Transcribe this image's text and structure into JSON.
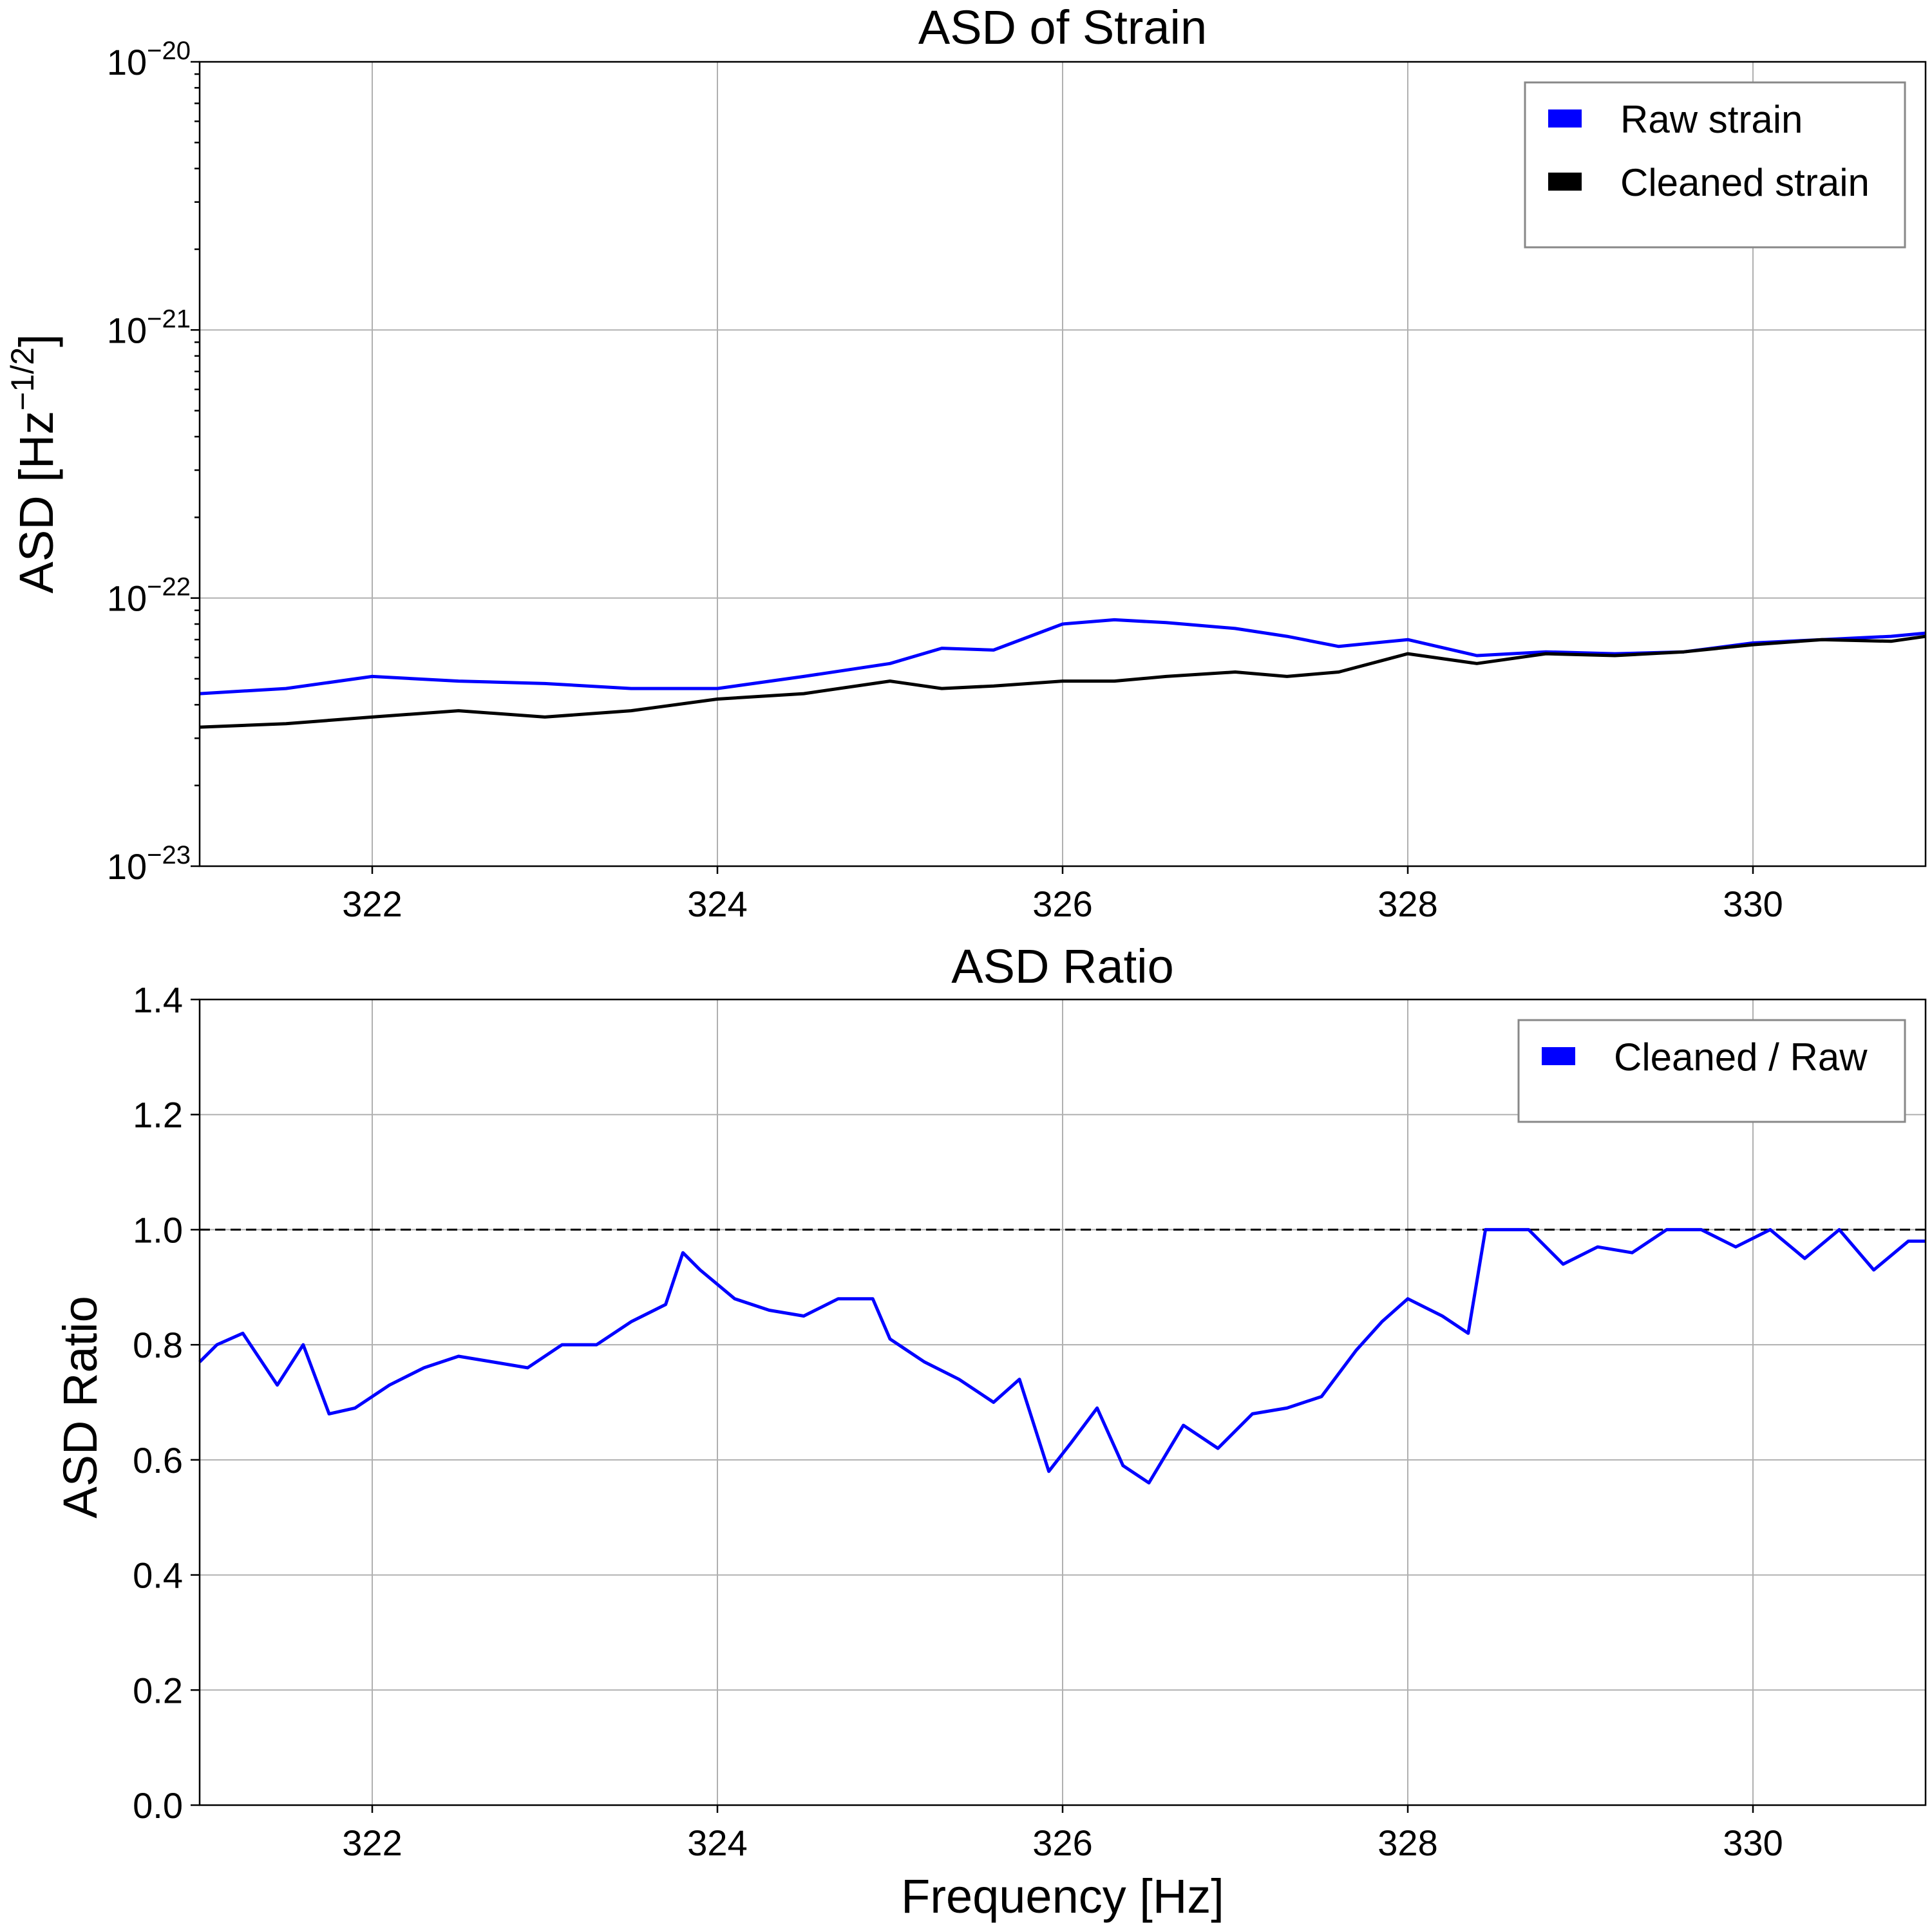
{
  "chart_data": [
    {
      "type": "line",
      "title": "ASD of Strain",
      "ylabel": "ASD [Hz",
      "ylabel_sup": "−1/2",
      "ylabel_suffix": "]",
      "xlabel": "",
      "x_scale": "linear",
      "y_scale": "log",
      "xlim": [
        321,
        331
      ],
      "ylim": [
        1e-23,
        1e-20
      ],
      "x_ticks": [
        "322",
        "324",
        "326",
        "328",
        "330"
      ],
      "y_tick_labels": [
        {
          "value": 1e-20,
          "base": "10",
          "exp": "−20"
        },
        {
          "value": 1e-21,
          "base": "10",
          "exp": "−21"
        },
        {
          "value": 1e-22,
          "base": "10",
          "exp": "−22"
        },
        {
          "value": 1e-23,
          "base": "10",
          "exp": "−23"
        }
      ],
      "grid": true,
      "legend_position": "top-right",
      "legend": [
        {
          "label": "Raw strain",
          "color": "#0000ff"
        },
        {
          "label": "Cleaned strain",
          "color": "#000000"
        }
      ],
      "series": [
        {
          "name": "Raw strain",
          "color": "#0000ff",
          "x": [
            321.0,
            321.5,
            322.0,
            322.5,
            323.0,
            323.5,
            324.0,
            324.5,
            325.0,
            325.3,
            325.6,
            326.0,
            326.3,
            326.6,
            327.0,
            327.3,
            327.6,
            328.0,
            328.4,
            328.8,
            329.2,
            329.6,
            330.0,
            330.4,
            330.8,
            331.0
          ],
          "values": [
            4.4e-23,
            4.6e-23,
            5.1e-23,
            4.9e-23,
            4.8e-23,
            4.6e-23,
            4.6e-23,
            5.1e-23,
            5.7e-23,
            6.5e-23,
            6.4e-23,
            8e-23,
            8.3e-23,
            8.1e-23,
            7.7e-23,
            7.2e-23,
            6.6e-23,
            7e-23,
            6.1e-23,
            6.3e-23,
            6.2e-23,
            6.3e-23,
            6.8e-23,
            7e-23,
            7.2e-23,
            7.4e-23
          ]
        },
        {
          "name": "Cleaned strain",
          "color": "#000000",
          "x": [
            321.0,
            321.5,
            322.0,
            322.5,
            323.0,
            323.5,
            324.0,
            324.5,
            325.0,
            325.3,
            325.6,
            326.0,
            326.3,
            326.6,
            327.0,
            327.3,
            327.6,
            328.0,
            328.4,
            328.8,
            329.2,
            329.6,
            330.0,
            330.4,
            330.8,
            331.0
          ],
          "values": [
            3.3e-23,
            3.4e-23,
            3.6e-23,
            3.8e-23,
            3.6e-23,
            3.8e-23,
            4.2e-23,
            4.4e-23,
            4.9e-23,
            4.6e-23,
            4.7e-23,
            4.9e-23,
            4.9e-23,
            5.1e-23,
            5.3e-23,
            5.1e-23,
            5.3e-23,
            6.2e-23,
            5.7e-23,
            6.2e-23,
            6.1e-23,
            6.3e-23,
            6.7e-23,
            7e-23,
            6.9e-23,
            7.2e-23
          ]
        }
      ]
    },
    {
      "type": "line",
      "title": "ASD Ratio",
      "ylabel": "ASD Ratio",
      "xlabel": "Frequency [Hz]",
      "x_scale": "linear",
      "y_scale": "linear",
      "xlim": [
        321,
        331
      ],
      "ylim": [
        0.0,
        1.4
      ],
      "x_ticks": [
        "322",
        "324",
        "326",
        "328",
        "330"
      ],
      "y_ticks": [
        "0.0",
        "0.2",
        "0.4",
        "0.6",
        "0.8",
        "1.0",
        "1.2",
        "1.4"
      ],
      "grid": true,
      "reference_line": {
        "y": 1.0,
        "style": "dashed",
        "color": "#000000"
      },
      "legend_position": "top-right",
      "legend": [
        {
          "label": "Cleaned / Raw",
          "color": "#0000ff"
        }
      ],
      "series": [
        {
          "name": "Cleaned / Raw",
          "color": "#0000ff",
          "x": [
            321.0,
            321.1,
            321.25,
            321.45,
            321.6,
            321.75,
            321.9,
            322.1,
            322.3,
            322.5,
            322.7,
            322.9,
            323.1,
            323.3,
            323.5,
            323.7,
            323.8,
            323.9,
            324.1,
            324.3,
            324.5,
            324.7,
            324.9,
            325.0,
            325.2,
            325.4,
            325.6,
            325.75,
            325.92,
            326.05,
            326.2,
            326.35,
            326.5,
            326.7,
            326.9,
            327.1,
            327.3,
            327.5,
            327.7,
            327.85,
            328.0,
            328.2,
            328.35,
            328.45,
            328.7,
            328.9,
            329.1,
            329.3,
            329.5,
            329.7,
            329.9,
            330.1,
            330.3,
            330.5,
            330.7,
            330.9,
            331.0
          ],
          "values": [
            0.77,
            0.8,
            0.82,
            0.73,
            0.8,
            0.68,
            0.69,
            0.73,
            0.76,
            0.78,
            0.77,
            0.76,
            0.8,
            0.8,
            0.84,
            0.87,
            0.96,
            0.93,
            0.88,
            0.86,
            0.85,
            0.88,
            0.88,
            0.81,
            0.77,
            0.74,
            0.7,
            0.74,
            0.58,
            0.63,
            0.69,
            0.59,
            0.56,
            0.66,
            0.62,
            0.68,
            0.69,
            0.71,
            0.79,
            0.84,
            0.88,
            0.85,
            0.82,
            1.0,
            1.0,
            0.94,
            0.97,
            0.96,
            1.0,
            1.0,
            0.97,
            1.0,
            0.95,
            1.0,
            0.93,
            0.98,
            0.98
          ]
        }
      ]
    }
  ]
}
